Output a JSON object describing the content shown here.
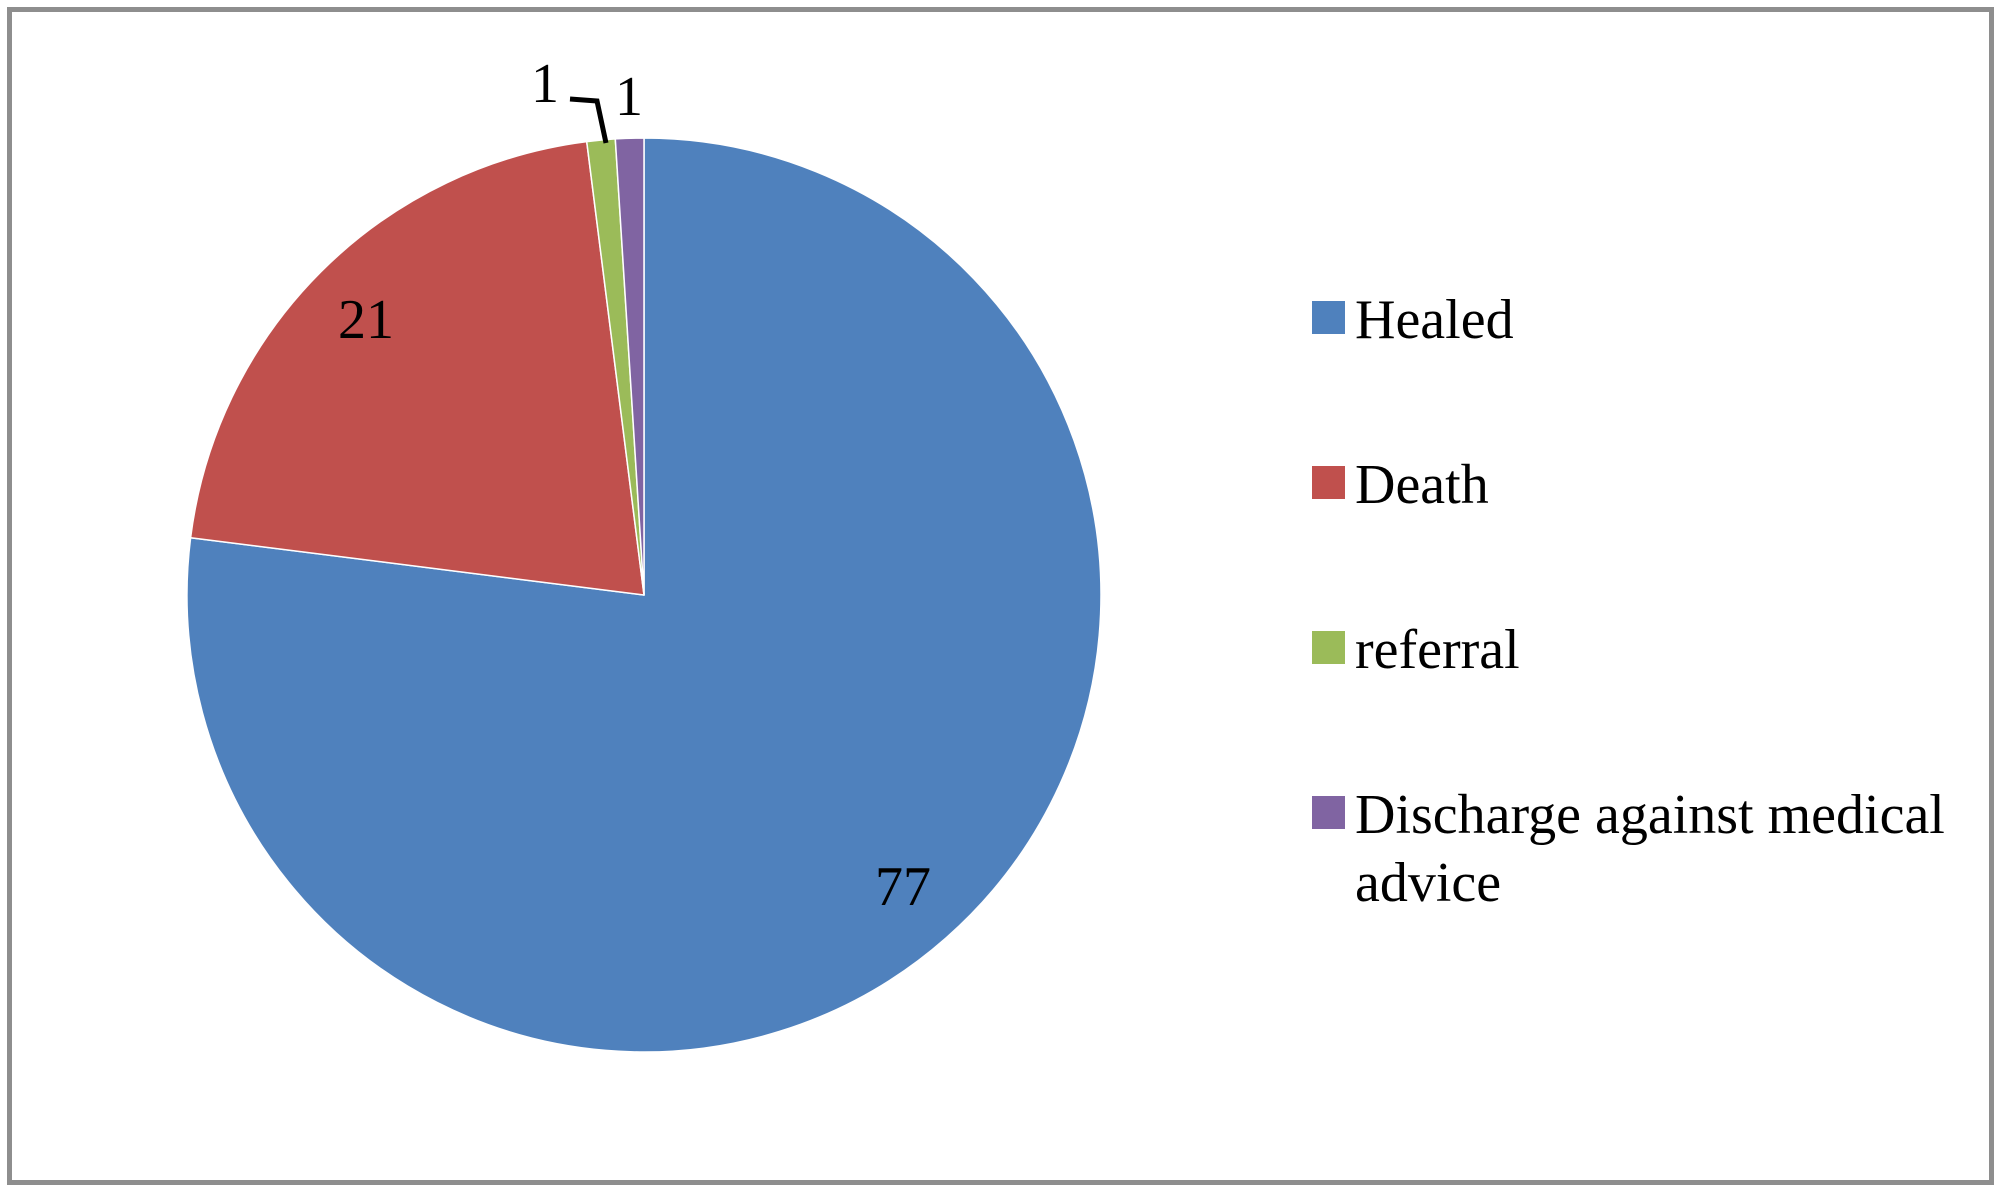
{
  "chart_data": {
    "type": "pie",
    "categories": [
      "Healed",
      "Death",
      "referral",
      "Discharge against medical advice"
    ],
    "values": [
      77,
      21,
      1,
      1
    ],
    "colors": [
      "#4F81BD",
      "#C0504D",
      "#9BBB59",
      "#8064A2"
    ],
    "slice_names": [
      "healed",
      "death",
      "referral",
      "discharge-against-medical-advice"
    ],
    "data_labels": {
      "healed": "77",
      "death": "21",
      "referral": "1",
      "discharge": "1"
    },
    "title": "",
    "start_angle_deg": 0,
    "direction": "clockwise",
    "legend_position": "right",
    "has_leader_line_to": "referral"
  }
}
